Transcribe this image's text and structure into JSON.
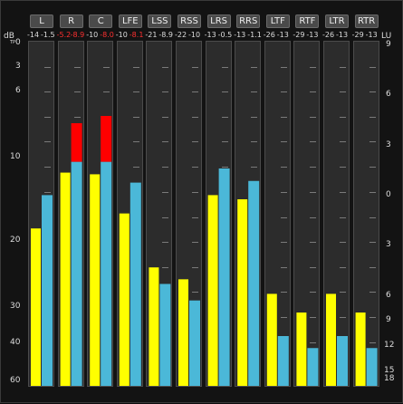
{
  "units": {
    "left": "dB",
    "left_sub": "TP",
    "right": "LU"
  },
  "channels": [
    {
      "label": "L",
      "peak_a": "-14",
      "peak_b": "-1.5",
      "peak_a_red": false,
      "peak_b_red": false
    },
    {
      "label": "R",
      "peak_a": "-5.2",
      "peak_b": "-8.9",
      "peak_a_red": true,
      "peak_b_red": true
    },
    {
      "label": "C",
      "peak_a": "-10",
      "peak_b": "-8.0",
      "peak_a_red": false,
      "peak_b_red": true
    },
    {
      "label": "LFE",
      "peak_a": "-10",
      "peak_b": "-8.1",
      "peak_a_red": false,
      "peak_b_red": true
    },
    {
      "label": "LSS",
      "peak_a": "-21",
      "peak_b": "-8.9",
      "peak_a_red": false,
      "peak_b_red": false
    },
    {
      "label": "RSS",
      "peak_a": "-22",
      "peak_b": "-10",
      "peak_a_red": false,
      "peak_b_red": false
    },
    {
      "label": "LRS",
      "peak_a": "-13",
      "peak_b": "-0.5",
      "peak_a_red": false,
      "peak_b_red": false
    },
    {
      "label": "RRS",
      "peak_a": "-13",
      "peak_b": "-1.1",
      "peak_a_red": false,
      "peak_b_red": false
    },
    {
      "label": "LTF",
      "peak_a": "-26",
      "peak_b": "-13",
      "peak_a_red": false,
      "peak_b_red": false
    },
    {
      "label": "RTF",
      "peak_a": "-29",
      "peak_b": "-13",
      "peak_a_red": false,
      "peak_b_red": false
    },
    {
      "label": "LTR",
      "peak_a": "-26",
      "peak_b": "-13",
      "peak_a_red": false,
      "peak_b_red": false
    },
    {
      "label": "RTR",
      "peak_a": "-29",
      "peak_b": "-13",
      "peak_a_red": false,
      "peak_b_red": false
    }
  ],
  "left_scale": [
    "0",
    "3",
    "6",
    "10",
    "20",
    "30",
    "40",
    "60"
  ],
  "right_scale": [
    "9",
    "6",
    "3",
    "0",
    "3",
    "6",
    "9",
    "12",
    "15",
    "18"
  ],
  "colors": {
    "yellow": "#ffff00",
    "blue": "#4bb8d8",
    "red": "#ff0000",
    "panel": "#2c2c2c"
  },
  "chart_data": {
    "type": "bar",
    "categories": [
      "L",
      "R",
      "C",
      "LFE",
      "LSS",
      "RSS",
      "LRS",
      "RRS",
      "LTF",
      "RTF",
      "LTR",
      "RTR"
    ],
    "series": [
      {
        "values": [
          -18.5,
          -11.8,
          -12.0,
          -16.7,
          -24.0,
          -25.8,
          -14.5,
          -15.0,
          -28.0,
          -31.5,
          -28.0,
          -31.5
        ]
      },
      {
        "values": [
          -14.5,
          -10.5,
          -10.5,
          -13.0,
          -26.5,
          -29.0,
          -11.3,
          -12.8,
          -38.0,
          -42.5,
          -38.0,
          -42.5
        ]
      }
    ],
    "overload": [
      0,
      1,
      1,
      0,
      0,
      0,
      0,
      0,
      0,
      0,
      0,
      0
    ],
    "ylim": [
      -60,
      0
    ]
  }
}
